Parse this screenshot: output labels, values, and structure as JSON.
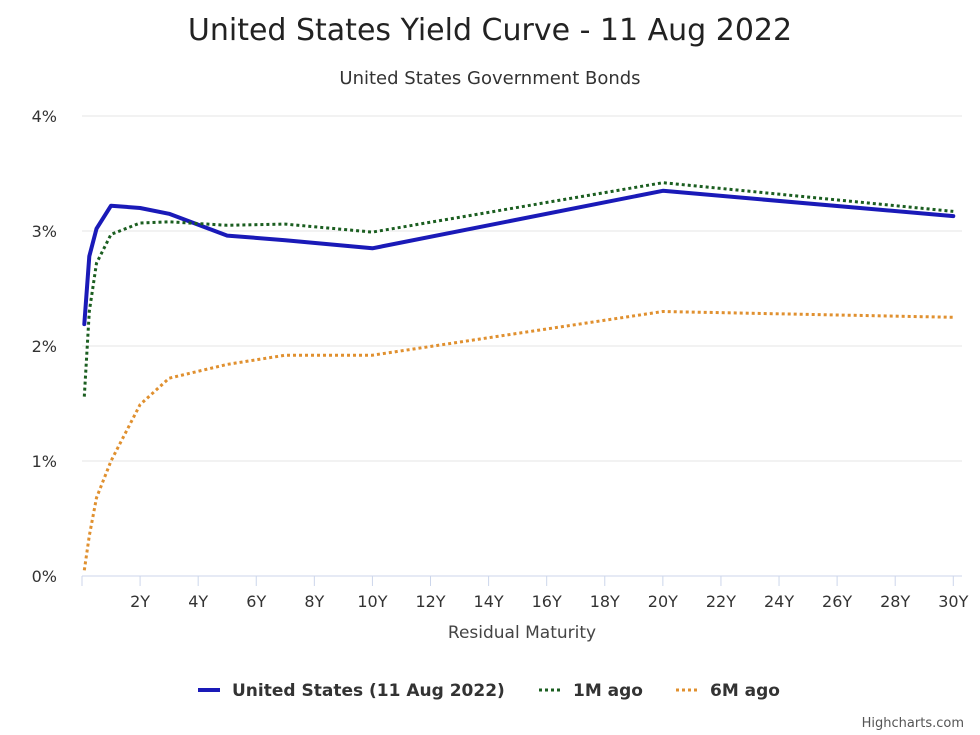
{
  "chart_data": {
    "type": "line",
    "title": "United States Yield Curve - 11 Aug 2022",
    "subtitle": "United States Government Bonds",
    "xlabel": "Residual Maturity",
    "ylabel": "",
    "xlim": [
      0,
      30.3
    ],
    "ylim": [
      0,
      4
    ],
    "y_ticks": [
      "0%",
      "1%",
      "2%",
      "3%",
      "4%"
    ],
    "x_ticks": [
      "2Y",
      "4Y",
      "6Y",
      "8Y",
      "10Y",
      "12Y",
      "14Y",
      "16Y",
      "18Y",
      "20Y",
      "22Y",
      "24Y",
      "26Y",
      "28Y",
      "30Y"
    ],
    "grid": true,
    "legend_position": "bottom-center",
    "series": [
      {
        "name": "United States (11 Aug 2022)",
        "color": "#1a1ab8",
        "style": "solid",
        "x": [
          0.08,
          0.25,
          0.5,
          1,
          2,
          3,
          5,
          7,
          10,
          20,
          30
        ],
        "y": [
          2.19,
          2.78,
          3.02,
          3.22,
          3.2,
          3.15,
          2.96,
          2.92,
          2.85,
          3.35,
          3.13
        ]
      },
      {
        "name": "1M ago",
        "color": "#1b5e20",
        "style": "dotted",
        "x": [
          0.08,
          0.25,
          0.5,
          1,
          2,
          3,
          5,
          7,
          10,
          20,
          30
        ],
        "y": [
          1.56,
          2.3,
          2.72,
          2.97,
          3.07,
          3.08,
          3.05,
          3.06,
          2.99,
          3.42,
          3.17
        ]
      },
      {
        "name": "6M ago",
        "color": "#e0902f",
        "style": "dotted",
        "x": [
          0.08,
          0.25,
          0.5,
          1,
          2,
          3,
          5,
          7,
          10,
          20,
          30
        ],
        "y": [
          0.05,
          0.35,
          0.68,
          1.0,
          1.49,
          1.72,
          1.84,
          1.92,
          1.92,
          2.3,
          2.25
        ]
      }
    ]
  },
  "credits": "Highcharts.com"
}
